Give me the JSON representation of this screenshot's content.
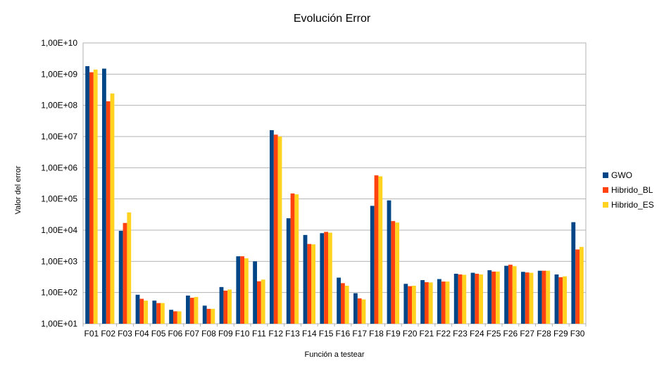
{
  "chart_data": {
    "type": "bar",
    "title": "Evolución Error",
    "xlabel": "Función a testear",
    "ylabel": "Valor del error",
    "yscale": "log",
    "ylim": [
      10,
      10000000000
    ],
    "ytick_values": [
      10,
      100,
      1000,
      10000,
      100000,
      1000000,
      10000000,
      100000000,
      1000000000,
      10000000000
    ],
    "ytick_labels": [
      "1,00E+01",
      "1,00E+02",
      "1,00E+03",
      "1,00E+04",
      "1,00E+05",
      "1,00E+06",
      "1,00E+07",
      "1,00E+08",
      "1,00E+09",
      "1,00E+10"
    ],
    "grid": true,
    "legend_position": "right",
    "categories": [
      "F01",
      "F02",
      "F03",
      "F04",
      "F05",
      "F06",
      "F07",
      "F08",
      "F09",
      "F10",
      "F11",
      "F12",
      "F13",
      "F14",
      "F15",
      "F16",
      "F17",
      "F18",
      "F19",
      "F20",
      "F21",
      "F22",
      "F23",
      "F24",
      "F25",
      "F26",
      "F27",
      "F28",
      "F29",
      "F30"
    ],
    "series": [
      {
        "name": "GWO",
        "color": "#004586",
        "values": [
          1800000000,
          1500000000,
          9500,
          85,
          55,
          28,
          80,
          38,
          150,
          1450,
          1000,
          16000000,
          24000,
          7000,
          8000,
          300,
          95,
          60000,
          90000,
          190,
          250,
          270,
          400,
          430,
          520,
          720,
          460,
          500,
          380,
          18000
        ]
      },
      {
        "name": "Hibrido_BL",
        "color": "#ff420e",
        "values": [
          1150000000,
          135000000,
          17000,
          63,
          46,
          25,
          68,
          30,
          115,
          1450,
          230,
          11500000,
          150000,
          3600,
          8800,
          200,
          65,
          570000,
          19500,
          160,
          215,
          225,
          380,
          400,
          470,
          780,
          440,
          500,
          310,
          2400
        ]
      },
      {
        "name": "Hibrido_ES",
        "color": "#ffd320",
        "values": [
          1400000000,
          240000000,
          37000,
          55,
          46,
          25,
          72,
          30,
          125,
          1250,
          260,
          10000000,
          140000,
          3500,
          8300,
          165,
          60,
          530000,
          17500,
          165,
          210,
          225,
          370,
          380,
          470,
          700,
          430,
          500,
          330,
          2900
        ]
      }
    ]
  }
}
